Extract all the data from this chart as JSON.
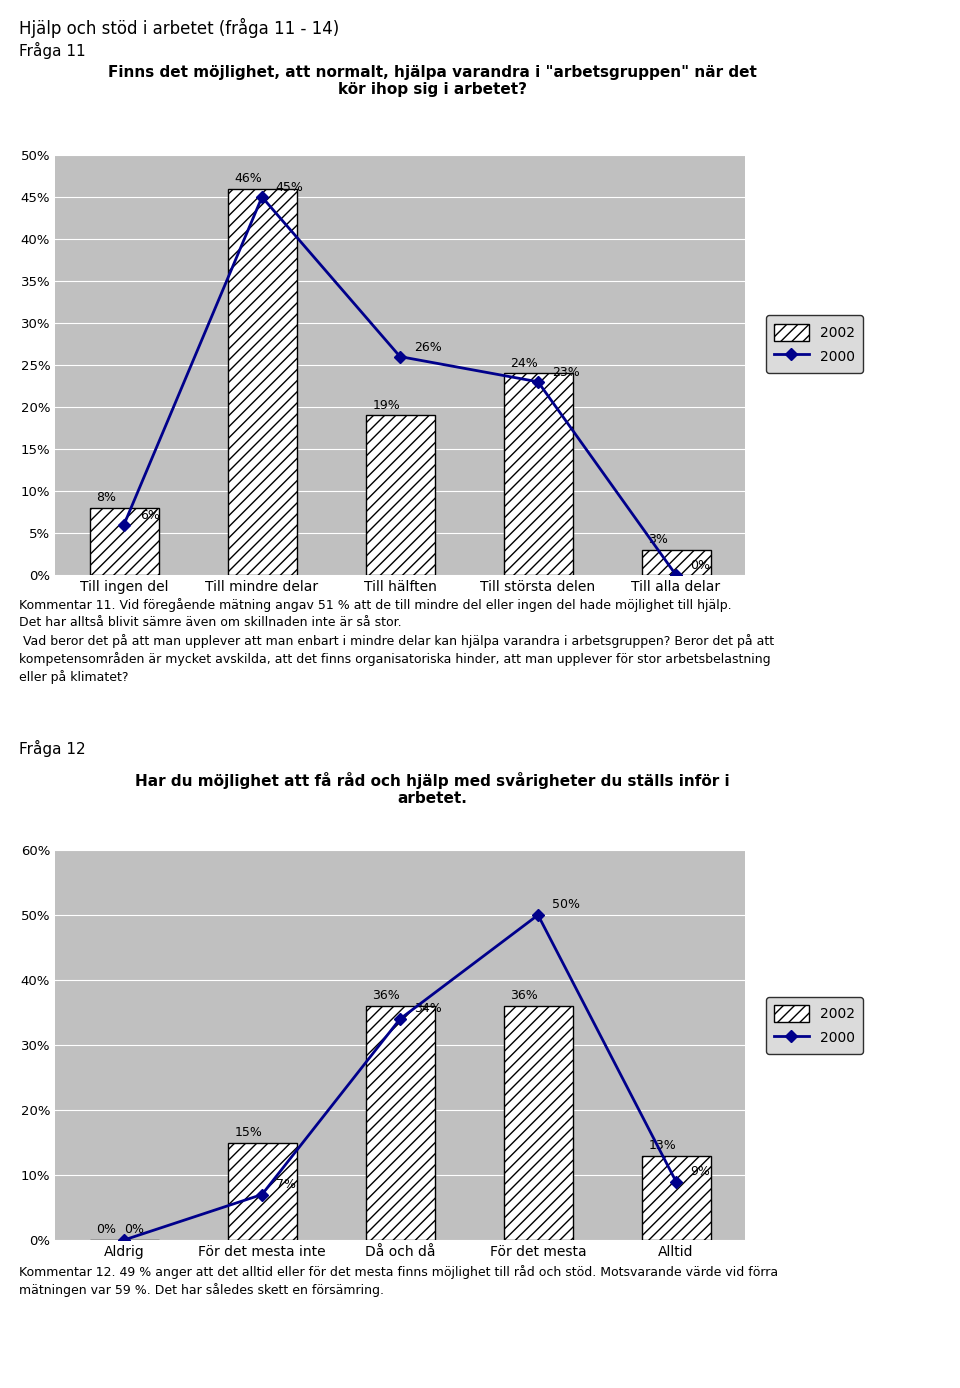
{
  "page_title": "Hjälp och stöd i arbetet (fråga 11 - 14)",
  "section1_label": "Fråga 11",
  "chart1_title": "Finns det möjlighet, att normalt, hjälpa varandra i \"arbetsgruppen\" när det\nkör ihop sig i arbetet?",
  "chart1_categories": [
    "Till ingen del",
    "Till mindre delar",
    "Till hälften",
    "Till största delen",
    "Till alla delar"
  ],
  "chart1_bars": [
    8,
    46,
    19,
    24,
    3
  ],
  "chart1_line": [
    6,
    45,
    26,
    23,
    0
  ],
  "chart1_bar_labels": [
    "8%",
    "46%",
    "19%",
    "24%",
    "3%"
  ],
  "chart1_line_labels": [
    "6%",
    "45%",
    "26%",
    "23%",
    "0%"
  ],
  "chart1_ylim": [
    0,
    50
  ],
  "chart1_yticks": [
    0,
    5,
    10,
    15,
    20,
    25,
    30,
    35,
    40,
    45,
    50
  ],
  "chart1_ytick_labels": [
    "0%",
    "5%",
    "10%",
    "15%",
    "20%",
    "25%",
    "30%",
    "35%",
    "40%",
    "45%",
    "50%"
  ],
  "comment1_lines": [
    "Kommentar 11. Vid föregående mätning angav 51 % att de till mindre del eller ingen del hade möjlighet till hjälp.",
    "Det har alltså blivit sämre även om skillnaden inte är så stor.",
    " Vad beror det på att man upplever att man enbart i mindre delar kan hjälpa varandra i arbetsgruppen? Beror det på att",
    "kompetensområden är mycket avskilda, att det finns organisatoriska hinder, att man upplever för stor arbetsbelastning",
    "eller på klimatet?"
  ],
  "section2_label": "Fråga 12",
  "chart2_title": "Har du möjlighet att få råd och hjälp med svårigheter du ställs inför i\narbetet.",
  "chart2_categories": [
    "Aldrig",
    "För det mesta inte",
    "Då och då",
    "För det mesta",
    "Alltid"
  ],
  "chart2_bars": [
    0,
    15,
    36,
    36,
    13
  ],
  "chart2_line": [
    0,
    7,
    34,
    50,
    9
  ],
  "chart2_bar_labels": [
    "0%",
    "15%",
    "36%",
    "36%",
    "13%"
  ],
  "chart2_line_labels": [
    "0%",
    "7%",
    "34%",
    "50%",
    "9%"
  ],
  "chart2_ylim": [
    0,
    60
  ],
  "chart2_yticks": [
    0,
    10,
    20,
    30,
    40,
    50,
    60
  ],
  "chart2_ytick_labels": [
    "0%",
    "10%",
    "20%",
    "30%",
    "40%",
    "50%",
    "60%"
  ],
  "comment2_lines": [
    "Kommentar 12. 49 % anger att det alltid eller för det mesta finns möjlighet till råd och stöd. Motsvarande värde vid förra",
    "mätningen var 59 %. Det har således skett en försämring."
  ],
  "bar_color": "#ffffff",
  "bar_hatch": "///",
  "bar_edgecolor": "#000000",
  "line_color": "#00008B",
  "line_marker": "D",
  "line_markersize": 6,
  "line_linewidth": 2,
  "legend_2002_label": "2002",
  "legend_2000_label": "2000",
  "chart_bg_color": "#C0C0C0",
  "page_bg_color": "#ffffff"
}
